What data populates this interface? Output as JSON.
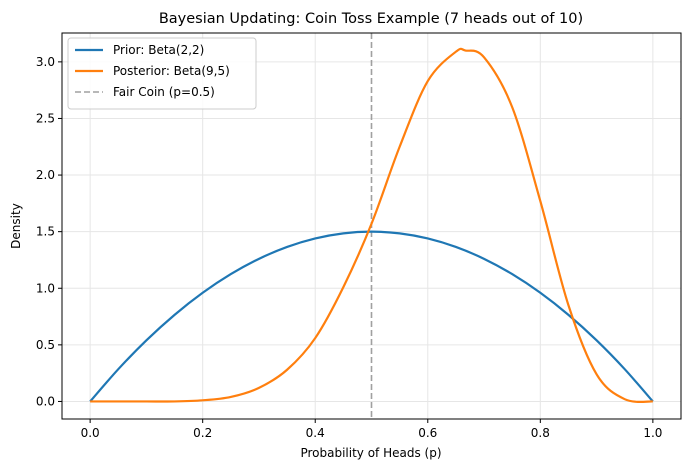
{
  "chart_data": {
    "type": "line",
    "title": "Bayesian Updating: Coin Toss Example (7 heads out of 10)",
    "xlabel": "Probability of Heads (p)",
    "ylabel": "Density",
    "xlim": [
      -0.05,
      1.05
    ],
    "ylim": [
      -0.155,
      3.255
    ],
    "x_ticks": [
      "0.0",
      "0.2",
      "0.4",
      "0.6",
      "0.8",
      "1.0"
    ],
    "y_ticks": [
      "0.0",
      "0.5",
      "1.0",
      "1.5",
      "2.0",
      "2.5",
      "3.0"
    ],
    "grid": true,
    "legend_position": "top-left",
    "series": [
      {
        "name": "Prior: Beta(2,2)",
        "color": "#1f77b4",
        "style": "solid",
        "x": [
          0.0,
          0.05,
          0.1,
          0.15,
          0.2,
          0.25,
          0.3,
          0.35,
          0.4,
          0.45,
          0.5,
          0.55,
          0.6,
          0.65,
          0.7,
          0.75,
          0.8,
          0.85,
          0.9,
          0.95,
          1.0
        ],
        "y": [
          0.0,
          0.285,
          0.54,
          0.765,
          0.96,
          1.125,
          1.26,
          1.365,
          1.44,
          1.485,
          1.5,
          1.485,
          1.44,
          1.365,
          1.26,
          1.125,
          0.96,
          0.765,
          0.54,
          0.285,
          0.0
        ]
      },
      {
        "name": "Posterior: Beta(9,5)",
        "color": "#ff7f0e",
        "style": "solid",
        "x": [
          0.0,
          0.05,
          0.1,
          0.15,
          0.2,
          0.25,
          0.3,
          0.35,
          0.4,
          0.45,
          0.5,
          0.55,
          0.6,
          0.65,
          0.667,
          0.7,
          0.75,
          0.8,
          0.85,
          0.9,
          0.95,
          1.0
        ],
        "y": [
          0.0,
          0.0,
          0.0,
          0.0,
          0.01,
          0.04,
          0.12,
          0.28,
          0.56,
          1.01,
          1.57,
          2.25,
          2.83,
          3.09,
          3.1,
          3.04,
          2.6,
          1.77,
          0.85,
          0.24,
          0.02,
          0.0
        ]
      }
    ],
    "reference_lines": [
      {
        "name": "Fair Coin (p=0.5)",
        "x": 0.5,
        "color": "#a0a0a0",
        "style": "dashed"
      }
    ]
  }
}
